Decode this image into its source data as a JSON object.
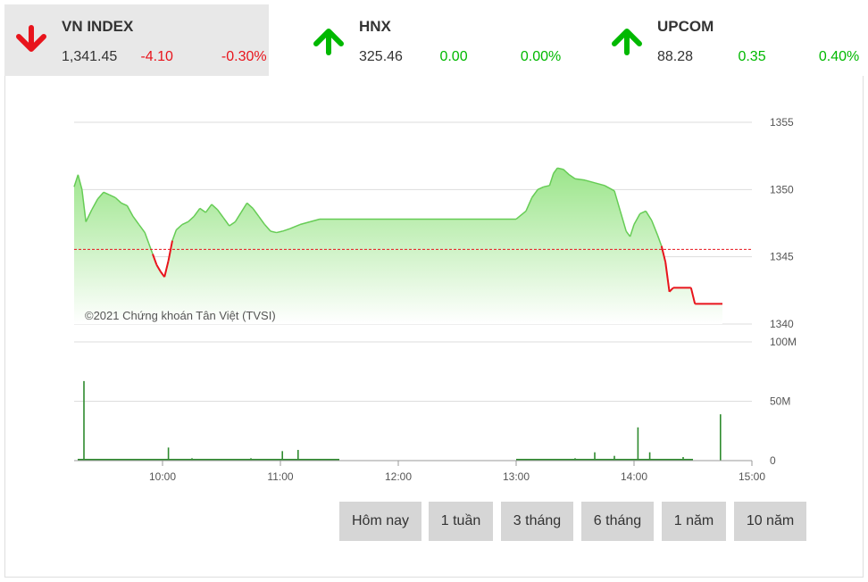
{
  "tickers": [
    {
      "name": "VN INDEX",
      "value": "1,341.45",
      "change": "-4.10",
      "pct": "-0.30%",
      "direction": "down"
    },
    {
      "name": "HNX",
      "value": "325.46",
      "change": "0.00",
      "pct": "0.00%",
      "direction": "up"
    },
    {
      "name": "UPCOM",
      "value": "88.28",
      "change": "0.35",
      "pct": "0.40%",
      "direction": "up"
    }
  ],
  "colors": {
    "up": "#00b800",
    "down": "#e8141c",
    "area_top": "#9be58a",
    "area_bottom": "#ffffff",
    "line_up": "#66cc55",
    "line_down": "#e8141c",
    "volume": "#2e8b2e",
    "reference": "#e8141c"
  },
  "copyright": "©2021 Chứng khoán Tân Việt (TVSI)",
  "range_buttons": [
    "Hôm nay",
    "1 tuần",
    "3 tháng",
    "6 tháng",
    "1 năm",
    "10 năm"
  ],
  "chart_data": {
    "type": "area",
    "x_ticks": [
      "10:00",
      "11:00",
      "12:00",
      "13:00",
      "14:00",
      "15:00"
    ],
    "y_ticks": [
      1340,
      1345,
      1350,
      1355
    ],
    "ylim": [
      1340,
      1355
    ],
    "reference": 1345.55,
    "price": [
      [
        "09:15",
        1350.2
      ],
      [
        "09:17",
        1351.1
      ],
      [
        "09:19",
        1350.0
      ],
      [
        "09:21",
        1347.6
      ],
      [
        "09:24",
        1348.5
      ],
      [
        "09:27",
        1349.3
      ],
      [
        "09:30",
        1349.8
      ],
      [
        "09:33",
        1349.6
      ],
      [
        "09:36",
        1349.4
      ],
      [
        "09:39",
        1349.0
      ],
      [
        "09:42",
        1348.8
      ],
      [
        "09:45",
        1348.0
      ],
      [
        "09:48",
        1347.4
      ],
      [
        "09:51",
        1346.8
      ],
      [
        "09:53",
        1346.0
      ],
      [
        "09:55",
        1345.2
      ],
      [
        "09:57",
        1344.4
      ],
      [
        "09:59",
        1343.9
      ],
      [
        "10:01",
        1343.5
      ],
      [
        "10:03",
        1344.7
      ],
      [
        "10:05",
        1346.2
      ],
      [
        "10:07",
        1347.0
      ],
      [
        "10:10",
        1347.4
      ],
      [
        "10:13",
        1347.6
      ],
      [
        "10:16",
        1348.0
      ],
      [
        "10:19",
        1348.6
      ],
      [
        "10:22",
        1348.3
      ],
      [
        "10:25",
        1348.9
      ],
      [
        "10:28",
        1348.5
      ],
      [
        "10:31",
        1347.9
      ],
      [
        "10:34",
        1347.3
      ],
      [
        "10:37",
        1347.6
      ],
      [
        "10:40",
        1348.3
      ],
      [
        "10:43",
        1349.0
      ],
      [
        "10:46",
        1348.6
      ],
      [
        "10:49",
        1348.0
      ],
      [
        "10:52",
        1347.4
      ],
      [
        "10:55",
        1346.9
      ],
      [
        "10:58",
        1346.8
      ],
      [
        "11:01",
        1346.9
      ],
      [
        "11:05",
        1347.1
      ],
      [
        "11:10",
        1347.4
      ],
      [
        "11:15",
        1347.6
      ],
      [
        "11:20",
        1347.8
      ],
      [
        "11:30",
        1347.8
      ],
      [
        "13:00",
        1347.8
      ],
      [
        "13:05",
        1348.4
      ],
      [
        "13:08",
        1349.4
      ],
      [
        "13:11",
        1350.0
      ],
      [
        "13:14",
        1350.2
      ],
      [
        "13:17",
        1350.3
      ],
      [
        "13:19",
        1351.2
      ],
      [
        "13:21",
        1351.6
      ],
      [
        "13:24",
        1351.5
      ],
      [
        "13:27",
        1351.1
      ],
      [
        "13:30",
        1350.8
      ],
      [
        "13:35",
        1350.7
      ],
      [
        "13:40",
        1350.5
      ],
      [
        "13:45",
        1350.3
      ],
      [
        "13:50",
        1349.9
      ],
      [
        "13:53",
        1348.4
      ],
      [
        "13:56",
        1346.9
      ],
      [
        "13:58",
        1346.5
      ],
      [
        "14:00",
        1347.4
      ],
      [
        "14:03",
        1348.2
      ],
      [
        "14:06",
        1348.4
      ],
      [
        "14:09",
        1347.7
      ],
      [
        "14:12",
        1346.6
      ],
      [
        "14:14",
        1345.8
      ],
      [
        "14:16",
        1344.6
      ],
      [
        "14:18",
        1342.4
      ],
      [
        "14:20",
        1342.7
      ],
      [
        "14:29",
        1342.7
      ],
      [
        "14:31",
        1341.5
      ],
      [
        "14:45",
        1341.5
      ]
    ],
    "volume_ylim": [
      0,
      100
    ],
    "volume_ticks": [
      "0",
      "50M",
      "100M"
    ],
    "volume": [
      [
        "09:20",
        67
      ],
      [
        "10:03",
        11
      ],
      [
        "10:15",
        2
      ],
      [
        "10:30",
        1.5
      ],
      [
        "10:45",
        2
      ],
      [
        "11:01",
        8
      ],
      [
        "11:09",
        9
      ],
      [
        "11:20",
        1.5
      ],
      [
        "13:05",
        1.5
      ],
      [
        "13:30",
        2
      ],
      [
        "13:40",
        7
      ],
      [
        "13:50",
        4
      ],
      [
        "14:02",
        28
      ],
      [
        "14:08",
        7
      ],
      [
        "14:25",
        3
      ],
      [
        "14:44",
        39
      ]
    ]
  }
}
